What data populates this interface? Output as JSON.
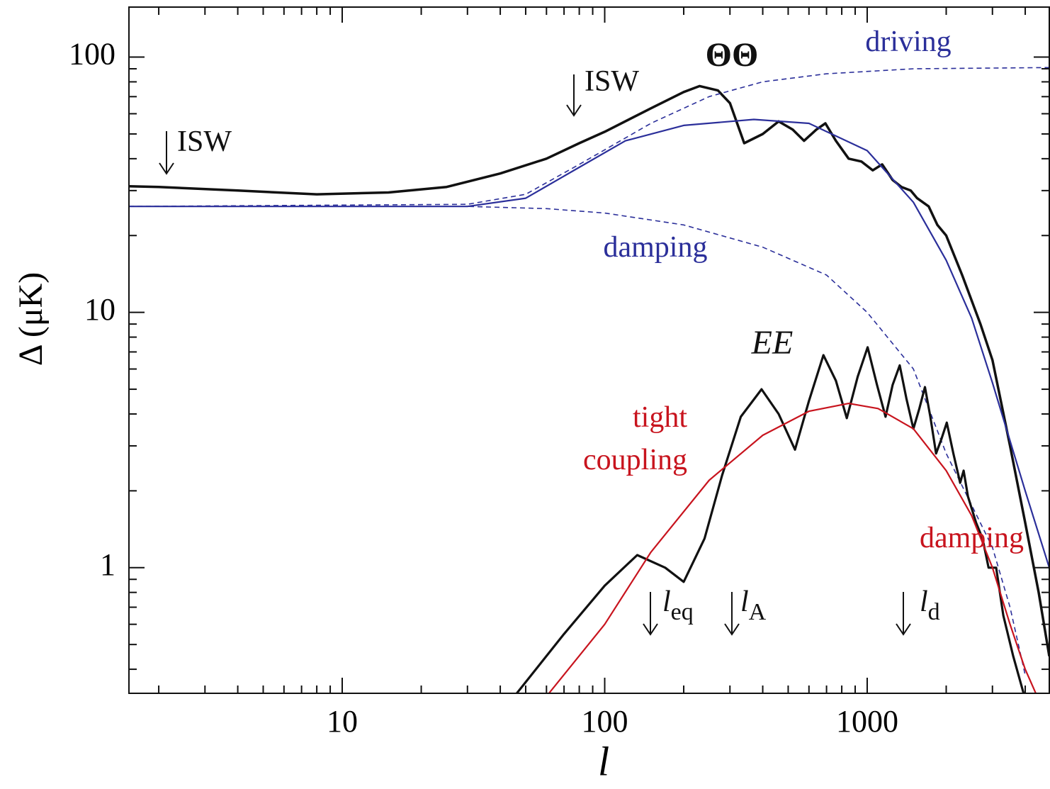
{
  "chart_data": {
    "type": "line",
    "xlabel": "l",
    "ylabel": "Δ (μK)",
    "xlog": true,
    "ylog": true,
    "xlim": [
      1.54,
      4940
    ],
    "ylim": [
      0.322,
      157
    ],
    "xticks": [
      10,
      100,
      1000
    ],
    "yticks": [
      1,
      10,
      100
    ],
    "xminorticks": [
      2,
      3,
      4,
      5,
      6,
      7,
      8,
      9,
      20,
      30,
      40,
      50,
      60,
      70,
      80,
      90,
      200,
      300,
      400,
      500,
      600,
      700,
      800,
      900,
      2000,
      3000,
      4000
    ],
    "yminorticks": [
      0.4,
      0.5,
      0.6,
      0.7,
      0.8,
      0.9,
      2,
      3,
      4,
      5,
      6,
      7,
      8,
      9,
      20,
      30,
      40,
      50,
      60,
      70,
      80,
      90
    ],
    "series": [
      {
        "color": "#111111",
        "width": 3.5,
        "dash": false,
        "x": [
          1.54,
          2,
          4,
          8,
          15,
          25,
          40,
          60,
          80,
          100,
          150,
          200,
          230,
          270,
          300,
          340,
          400,
          460,
          520,
          575,
          640,
          693,
          760,
          850,
          950,
          1050,
          1140,
          1250,
          1350,
          1465,
          1550,
          1715,
          1850,
          2000,
          2300,
          2700,
          3000,
          3500,
          4000,
          4500,
          4940
        ],
        "values": [
          31.2,
          31,
          30,
          29,
          29.5,
          31,
          35,
          40,
          46,
          51,
          63,
          73,
          77,
          74,
          66,
          46,
          50,
          56,
          52,
          47,
          52,
          55,
          47,
          40,
          39,
          36,
          38,
          33,
          31,
          30,
          28,
          26,
          22,
          20,
          14,
          9,
          6.5,
          3,
          1.5,
          0.8,
          0.45
        ]
      },
      {
        "color": "#2b2f9a",
        "width": 2.2,
        "dash": false,
        "x": [
          1.54,
          30,
          50,
          80,
          120,
          200,
          370,
          600,
          1000,
          1500,
          2000,
          2500,
          3000,
          4000,
          4940
        ],
        "values": [
          26,
          26,
          28,
          37,
          47,
          54,
          57,
          55,
          43,
          27,
          16,
          9.5,
          5.3,
          2,
          1
        ]
      },
      {
        "color": "#2b2f9a",
        "width": 1.6,
        "dash": true,
        "x": [
          1.54,
          30,
          50,
          80,
          150,
          250,
          400,
          700,
          1500,
          4940
        ],
        "values": [
          26,
          26.5,
          29,
          38,
          55,
          70,
          80,
          86,
          90,
          91
        ]
      },
      {
        "color": "#2b2f9a",
        "width": 1.6,
        "dash": true,
        "x": [
          1.54,
          30,
          60,
          100,
          200,
          400,
          700,
          1000,
          1500,
          2000,
          3000,
          3500,
          4000
        ],
        "values": [
          26,
          26,
          25.5,
          24.5,
          22,
          18,
          14,
          10,
          6,
          2.8,
          1.2,
          0.7,
          0.38
        ]
      },
      {
        "color": "#111111",
        "width": 3.2,
        "dash": false,
        "x": [
          46,
          70,
          100,
          133,
          170,
          200,
          240,
          280,
          330,
          396,
          460,
          531,
          600,
          681,
          760,
          836,
          920,
          1004,
          1090,
          1175,
          1250,
          1330,
          1410,
          1500,
          1580,
          1660,
          1740,
          1830,
          1920,
          2010,
          2130,
          2260,
          2330,
          2420,
          2600,
          2750,
          2900,
          3100,
          3300,
          3600,
          3950
        ],
        "values": [
          0.32,
          0.55,
          0.85,
          1.12,
          1.0,
          0.88,
          1.3,
          2.3,
          3.9,
          5.0,
          4.0,
          2.9,
          4.5,
          6.8,
          5.4,
          3.85,
          5.6,
          7.3,
          5.2,
          3.9,
          5.2,
          6.2,
          4.6,
          3.5,
          4.2,
          5.1,
          3.9,
          2.8,
          3.2,
          3.7,
          2.8,
          2.15,
          2.4,
          1.9,
          1.5,
          1.3,
          1.0,
          1.0,
          0.65,
          0.45,
          0.32
        ]
      },
      {
        "color": "#c8141e",
        "width": 2.2,
        "dash": false,
        "x": [
          61,
          100,
          150,
          250,
          400,
          600,
          850,
          1100,
          1500,
          2000,
          2500,
          3000,
          3500,
          4000,
          4400
        ],
        "values": [
          0.32,
          0.6,
          1.15,
          2.2,
          3.3,
          4.1,
          4.4,
          4.2,
          3.5,
          2.4,
          1.6,
          1.0,
          0.6,
          0.4,
          0.32
        ]
      }
    ],
    "annotations": [
      {
        "text": "ΘΘ",
        "color": "#111111"
      },
      {
        "text": "driving",
        "color": "#2b2f9a"
      },
      {
        "text": "damping",
        "color": "#2b2f9a"
      },
      {
        "text": "EE",
        "color": "#111111"
      },
      {
        "text": "tight",
        "color": "#c8141e"
      },
      {
        "text": "coupling",
        "color": "#c8141e"
      },
      {
        "text": "damping",
        "color": "#c8141e"
      },
      {
        "text": "ISW",
        "color": "#111111"
      },
      {
        "text": "ISW",
        "color": "#111111"
      },
      {
        "text": "l",
        "sub": "eq",
        "color": "#111111"
      },
      {
        "text": "l",
        "sub": "A",
        "color": "#111111"
      },
      {
        "text": "l",
        "sub": "d",
        "color": "#111111"
      }
    ]
  }
}
